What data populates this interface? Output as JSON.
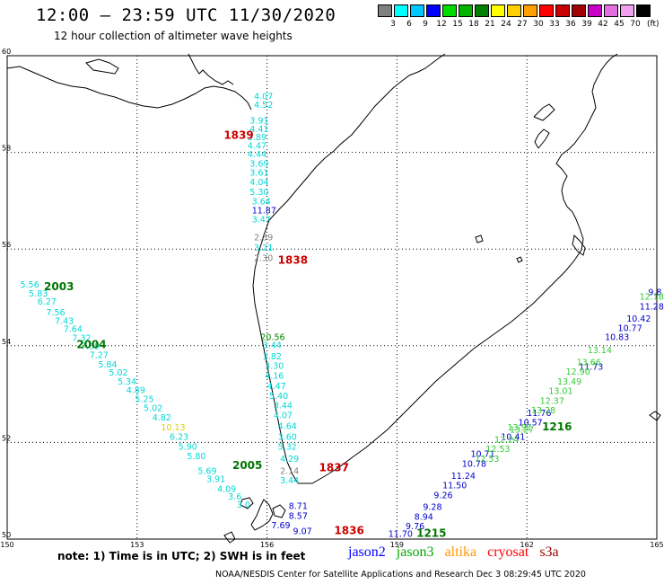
{
  "header": {
    "title": "12:00 – 23:59 UTC 11/30/2020",
    "subtitle": "12 hour collection of altimeter wave heights"
  },
  "legend": {
    "colors": [
      "#808080",
      "#00ffff",
      "#00c8ff",
      "#0000ff",
      "#00dc00",
      "#00b400",
      "#008000",
      "#ffff00",
      "#ffd000",
      "#ffa000",
      "#ff0000",
      "#c80000",
      "#a00000",
      "#c800c8",
      "#e070e0",
      "#f0a0f0",
      "#000000"
    ],
    "labels": [
      "3",
      "6",
      "9",
      "12",
      "15",
      "18",
      "21",
      "24",
      "27",
      "30",
      "33",
      "36",
      "39",
      "42",
      "45",
      "70"
    ],
    "unit": "(ft)"
  },
  "map": {
    "lon_ticks": [
      "150",
      "153",
      "156",
      "159",
      "162",
      "165"
    ],
    "lat_ticks": [
      "60",
      "58",
      "56",
      "54",
      "52",
      "50"
    ],
    "lon_range": [
      150,
      165
    ],
    "lat_range": [
      50,
      60
    ],
    "land_color": "#ffffff",
    "coast_color": "#000000",
    "grid": "dotted"
  },
  "tracks": [
    {
      "name": "jason3-west-coast",
      "color": "#00d8d8",
      "points": [
        {
          "lon": 155.7,
          "lat": 59.1,
          "v": "4.07"
        },
        {
          "lon": 155.7,
          "lat": 58.92,
          "v": "4.52"
        },
        {
          "lon": 155.6,
          "lat": 58.6,
          "v": "3.91"
        },
        {
          "lon": 155.6,
          "lat": 58.42,
          "v": "4.41"
        },
        {
          "lon": 155.55,
          "lat": 58.25,
          "v": "3.89"
        },
        {
          "lon": 155.55,
          "lat": 58.08,
          "v": "4.47"
        },
        {
          "lon": 155.55,
          "lat": 57.9,
          "v": "4.44"
        },
        {
          "lon": 155.6,
          "lat": 57.7,
          "v": "3.69"
        },
        {
          "lon": 155.6,
          "lat": 57.52,
          "v": "3.61"
        },
        {
          "lon": 155.6,
          "lat": 57.32,
          "v": "4.04"
        },
        {
          "lon": 155.6,
          "lat": 57.12,
          "v": "5.30"
        },
        {
          "lon": 155.65,
          "lat": 56.92,
          "v": "3.64"
        },
        {
          "lon": 155.65,
          "lat": 56.74,
          "v": "11.87",
          "c": "#0000cc"
        },
        {
          "lon": 155.65,
          "lat": 56.55,
          "v": "3.47"
        },
        {
          "lon": 155.7,
          "lat": 56.18,
          "v": "2.39",
          "c": "#808080"
        },
        {
          "lon": 155.7,
          "lat": 55.97,
          "v": "3.21"
        },
        {
          "lon": 155.7,
          "lat": 55.75,
          "v": "2.30",
          "c": "#808080"
        }
      ]
    },
    {
      "name": "jason3-sw",
      "color": "#00d8d8",
      "points": [
        {
          "lon": 150.3,
          "lat": 55.2,
          "v": "5.56"
        },
        {
          "lon": 150.5,
          "lat": 55.02,
          "v": "5.83"
        },
        {
          "lon": 150.7,
          "lat": 54.85,
          "v": "6.27"
        },
        {
          "lon": 150.9,
          "lat": 54.63,
          "v": "7.56"
        },
        {
          "lon": 151.1,
          "lat": 54.45,
          "v": "7.43"
        },
        {
          "lon": 151.3,
          "lat": 54.28,
          "v": "7.64"
        },
        {
          "lon": 151.5,
          "lat": 54.1,
          "v": "7.32"
        },
        {
          "lon": 151.7,
          "lat": 53.93,
          "v": "7.59"
        },
        {
          "lon": 151.9,
          "lat": 53.75,
          "v": "7.27"
        },
        {
          "lon": 152.1,
          "lat": 53.55,
          "v": "5.84"
        },
        {
          "lon": 152.35,
          "lat": 53.38,
          "v": "5.02"
        },
        {
          "lon": 152.55,
          "lat": 53.2,
          "v": "5.34"
        },
        {
          "lon": 152.75,
          "lat": 53.02,
          "v": "4.89"
        },
        {
          "lon": 152.95,
          "lat": 52.83,
          "v": "5.25"
        },
        {
          "lon": 153.15,
          "lat": 52.65,
          "v": "5.02"
        },
        {
          "lon": 153.35,
          "lat": 52.45,
          "v": "4.82"
        },
        {
          "lon": 153.55,
          "lat": 52.25,
          "v": "10.13",
          "c": "#e0d000"
        },
        {
          "lon": 153.75,
          "lat": 52.05,
          "v": "6.23"
        },
        {
          "lon": 153.95,
          "lat": 51.85,
          "v": "5.90"
        },
        {
          "lon": 154.15,
          "lat": 51.65,
          "v": "5.80"
        },
        {
          "lon": 154.4,
          "lat": 51.35,
          "v": "5.69"
        },
        {
          "lon": 154.6,
          "lat": 51.18,
          "v": "3.91"
        },
        {
          "lon": 154.85,
          "lat": 50.98,
          "v": "4.09"
        },
        {
          "lon": 155.1,
          "lat": 50.82,
          "v": "3.6"
        },
        {
          "lon": 155.3,
          "lat": 50.65,
          "v": "3.0"
        }
      ]
    },
    {
      "name": "jason3-east-coast",
      "color": "#00d8d8",
      "points": [
        {
          "lon": 155.85,
          "lat": 54.12,
          "v": "20.56",
          "c": "#008800"
        },
        {
          "lon": 155.9,
          "lat": 53.95,
          "v": "3.44"
        },
        {
          "lon": 155.9,
          "lat": 53.72,
          "v": "3.82"
        },
        {
          "lon": 155.95,
          "lat": 53.52,
          "v": "3.30"
        },
        {
          "lon": 155.95,
          "lat": 53.32,
          "v": "4.16"
        },
        {
          "lon": 156.0,
          "lat": 53.1,
          "v": "4.47"
        },
        {
          "lon": 156.05,
          "lat": 52.9,
          "v": "5.40"
        },
        {
          "lon": 156.15,
          "lat": 52.7,
          "v": "3.44"
        },
        {
          "lon": 156.15,
          "lat": 52.5,
          "v": "4.07"
        },
        {
          "lon": 156.25,
          "lat": 52.28,
          "v": "4.64"
        },
        {
          "lon": 156.25,
          "lat": 52.05,
          "v": "3.60"
        },
        {
          "lon": 156.25,
          "lat": 51.85,
          "v": "5.32"
        },
        {
          "lon": 156.3,
          "lat": 51.6,
          "v": "4.29"
        },
        {
          "lon": 156.3,
          "lat": 51.35,
          "v": "2.14",
          "c": "#808080"
        },
        {
          "lon": 156.3,
          "lat": 51.15,
          "v": "3.44"
        },
        {
          "lon": 156.5,
          "lat": 50.62,
          "v": "8.71",
          "c": "#0000cc"
        },
        {
          "lon": 156.5,
          "lat": 50.42,
          "v": "8.57",
          "c": "#0000cc"
        },
        {
          "lon": 156.1,
          "lat": 50.22,
          "v": "7.69",
          "c": "#0000cc"
        },
        {
          "lon": 156.6,
          "lat": 50.1,
          "v": "9.07",
          "c": "#0000cc"
        }
      ]
    },
    {
      "name": "jason2-se",
      "color": "#0000cc",
      "points": [
        {
          "lon": 158.8,
          "lat": 50.05,
          "v": "11.70"
        },
        {
          "lon": 159.2,
          "lat": 50.2,
          "v": "9.76"
        },
        {
          "lon": 159.4,
          "lat": 50.4,
          "v": "8.94"
        },
        {
          "lon": 159.6,
          "lat": 50.6,
          "v": "9.28"
        },
        {
          "lon": 159.85,
          "lat": 50.85,
          "v": "9.26"
        },
        {
          "lon": 160.05,
          "lat": 51.05,
          "v": "11.50"
        },
        {
          "lon": 160.25,
          "lat": 51.25,
          "v": "11.24"
        },
        {
          "lon": 160.5,
          "lat": 51.5,
          "v": "10.78"
        },
        {
          "lon": 160.7,
          "lat": 51.7,
          "v": "10.71"
        },
        {
          "lon": 161.4,
          "lat": 52.05,
          "v": "10.41"
        },
        {
          "lon": 161.8,
          "lat": 52.35,
          "v": "10.57"
        },
        {
          "lon": 162.0,
          "lat": 52.55,
          "v": "11.76"
        },
        {
          "lon": 163.2,
          "lat": 53.5,
          "v": "11.73"
        },
        {
          "lon": 163.8,
          "lat": 54.12,
          "v": "10.83"
        },
        {
          "lon": 164.1,
          "lat": 54.3,
          "v": "10.77"
        },
        {
          "lon": 164.3,
          "lat": 54.5,
          "v": "10.42"
        },
        {
          "lon": 164.6,
          "lat": 54.75,
          "v": "11.28"
        },
        {
          "lon": 164.8,
          "lat": 55.05,
          "v": "9.8"
        }
      ]
    },
    {
      "name": "jason3-se",
      "color": "#33cc33",
      "points": [
        {
          "lon": 160.8,
          "lat": 51.6,
          "v": "12.53"
        },
        {
          "lon": 161.05,
          "lat": 51.8,
          "v": "12.53"
        },
        {
          "lon": 161.25,
          "lat": 52.0,
          "v": "12.24"
        },
        {
          "lon": 161.6,
          "lat": 52.2,
          "v": "13.27"
        },
        {
          "lon": 162.1,
          "lat": 52.6,
          "v": "13.28"
        },
        {
          "lon": 162.3,
          "lat": 52.8,
          "v": "12.37"
        },
        {
          "lon": 162.5,
          "lat": 53.0,
          "v": "13.01"
        },
        {
          "lon": 162.7,
          "lat": 53.2,
          "v": "13.49"
        },
        {
          "lon": 162.9,
          "lat": 53.4,
          "v": "12.90"
        },
        {
          "lon": 163.15,
          "lat": 53.6,
          "v": "13.66"
        },
        {
          "lon": 163.4,
          "lat": 53.85,
          "v": "13.14"
        },
        {
          "lon": 164.6,
          "lat": 54.95,
          "v": "12.18"
        },
        {
          "lon": 161.55,
          "lat": 52.25,
          "v": "13.91"
        }
      ]
    }
  ],
  "times": [
    {
      "lon": 155.0,
      "lat": 58.28,
      "v": "1839",
      "c": "#cc0000"
    },
    {
      "lon": 156.25,
      "lat": 55.7,
      "v": "1838",
      "c": "#cc0000"
    },
    {
      "lon": 150.85,
      "lat": 55.15,
      "v": "2003",
      "c": "#007700"
    },
    {
      "lon": 151.6,
      "lat": 53.95,
      "v": "2004",
      "c": "#007700"
    },
    {
      "lon": 155.2,
      "lat": 51.45,
      "v": "2005",
      "c": "#007700"
    },
    {
      "lon": 157.2,
      "lat": 51.4,
      "v": "1837",
      "c": "#cc0000"
    },
    {
      "lon": 157.55,
      "lat": 50.1,
      "v": "1836",
      "c": "#cc0000"
    },
    {
      "lon": 159.45,
      "lat": 50.05,
      "v": "1215",
      "c": "#007700"
    },
    {
      "lon": 162.35,
      "lat": 52.25,
      "v": "1216",
      "c": "#007700"
    }
  ],
  "note": "note: 1) Time is in UTC; 2) SWH is in feet",
  "satellites": [
    {
      "name": "jason2",
      "color": "#0000ff"
    },
    {
      "name": "jason3",
      "color": "#00aa00"
    },
    {
      "name": "altika",
      "color": "#ff9900"
    },
    {
      "name": "cryosat",
      "color": "#ff0000"
    },
    {
      "name": "s3a",
      "color": "#990000"
    }
  ],
  "footer": "NOAA/NESDIS Center for Satellite Applications and Research    Dec  3 08:29:45 UTC 2020"
}
